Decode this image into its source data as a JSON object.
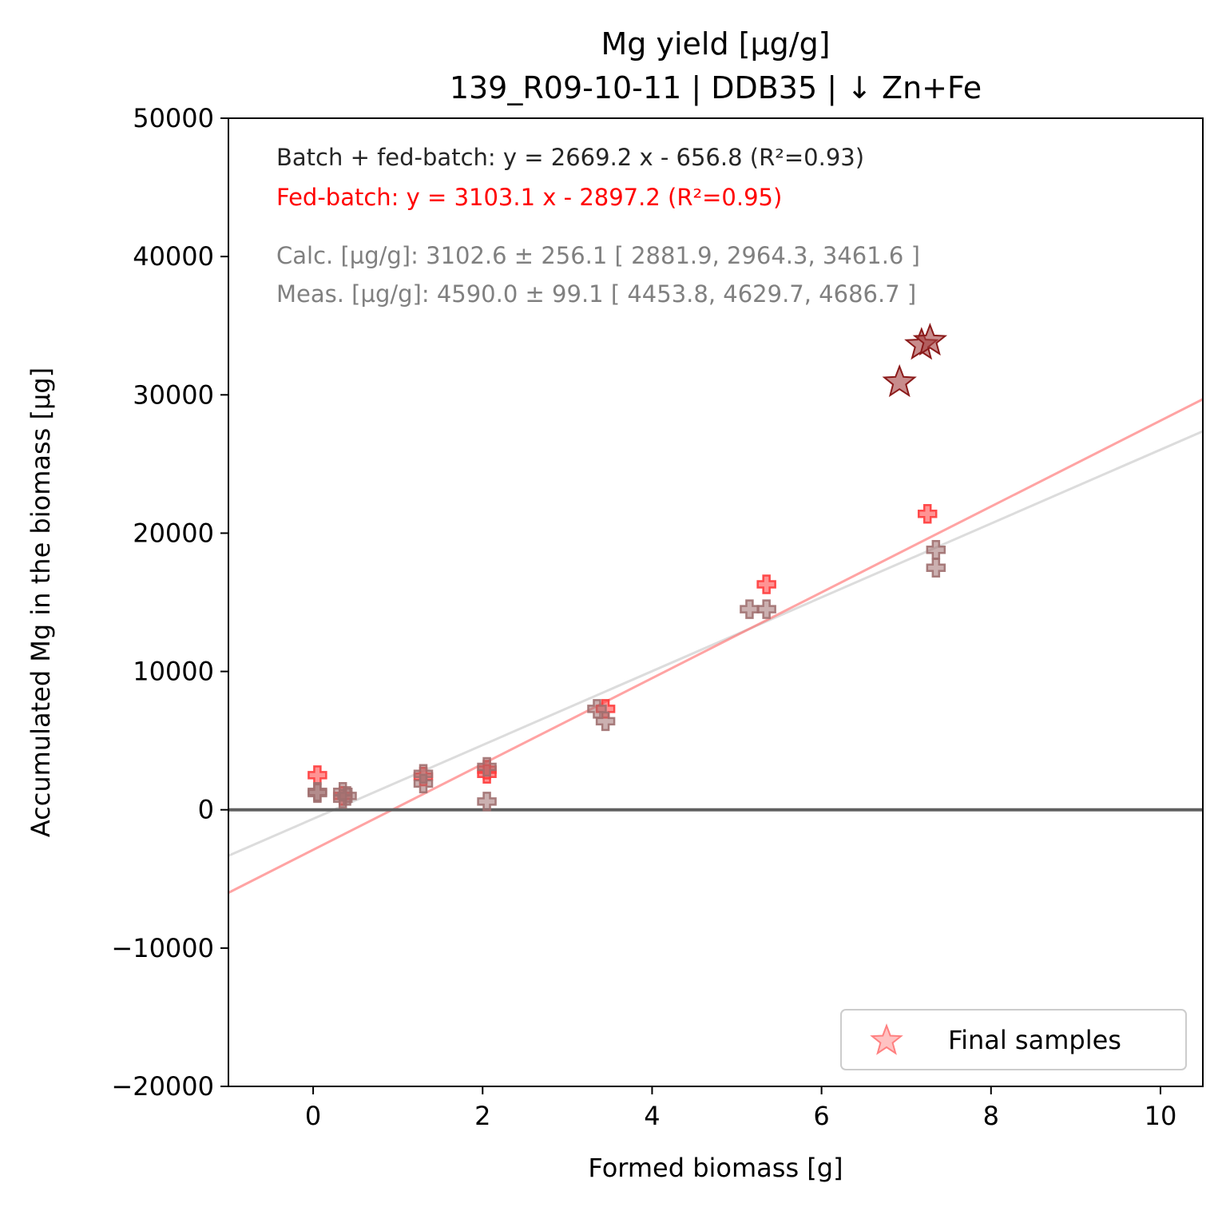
{
  "chart_data": {
    "type": "scatter",
    "title": "Mg yield [µg/g]",
    "subtitle": "139_R09-10-11  |  DDB35  |  ↓ Zn+Fe",
    "xlabel": "Formed biomass [g]",
    "ylabel": "Accumulated Mg in the biomass [µg]",
    "xlim": [
      -1,
      10.5
    ],
    "ylim": [
      -20000,
      50000
    ],
    "x_ticks": [
      0,
      2,
      4,
      6,
      8,
      10
    ],
    "x_tick_labels": [
      "0",
      "2",
      "4",
      "6",
      "8",
      "10"
    ],
    "y_ticks": [
      -20000,
      -10000,
      0,
      10000,
      20000,
      30000,
      40000,
      50000
    ],
    "y_tick_labels": [
      "−20000",
      "−10000",
      "0",
      "10000",
      "20000",
      "30000",
      "40000",
      "50000"
    ],
    "grid": false,
    "legend_position": "lower-right",
    "annotations": [
      {
        "text": "Batch + fed-batch: y = 2669.2 x - 656.8 (R²=0.93)",
        "color": "#262626"
      },
      {
        "text": "Fed-batch: y = 3103.1 x - 2897.2 (R²=0.95)",
        "color": "#ff0000"
      },
      {
        "text": "Calc. [µg/g]: 3102.6 ± 256.1 [ 2881.9, 2964.3, 3461.6 ]",
        "color": "#808080"
      },
      {
        "text": "Meas. [µg/g]: 4590.0 ± 99.1 [ 4453.8, 4629.7, 4686.7 ]",
        "color": "#808080"
      }
    ],
    "lines": [
      {
        "label": "Batch + fed-batch",
        "slope": 2669.2,
        "intercept": -656.8,
        "color": "#bfbfbf",
        "opacity": 0.55
      },
      {
        "label": "Fed-batch",
        "slope": 3103.1,
        "intercept": -2897.2,
        "color": "#ff6666",
        "opacity": 0.6
      }
    ],
    "hline": {
      "y": 0,
      "color": "#606060"
    },
    "series": [
      {
        "marker": "plus",
        "color": "#ff3b3b",
        "points": [
          [
            0.05,
            2500
          ],
          [
            0.35,
            1000
          ],
          [
            1.3,
            2400
          ],
          [
            2.05,
            2900
          ],
          [
            2.05,
            2600
          ],
          [
            3.45,
            7300
          ],
          [
            5.35,
            16300
          ],
          [
            7.25,
            21400
          ]
        ]
      },
      {
        "marker": "plus",
        "color": "#a07070",
        "points": [
          [
            0.05,
            1300
          ],
          [
            0.05,
            1200
          ],
          [
            0.35,
            1300
          ],
          [
            0.35,
            800
          ],
          [
            0.4,
            1000
          ],
          [
            1.3,
            2600
          ],
          [
            1.3,
            1900
          ],
          [
            2.05,
            3100
          ],
          [
            2.05,
            600
          ],
          [
            3.35,
            7300
          ],
          [
            3.45,
            6400
          ],
          [
            5.15,
            14500
          ],
          [
            5.35,
            14500
          ],
          [
            7.35,
            18800
          ],
          [
            7.35,
            17500
          ]
        ]
      },
      {
        "name": "Final samples",
        "marker": "star",
        "color": "#a34040",
        "points": [
          [
            6.92,
            30900
          ],
          [
            7.18,
            33600
          ],
          [
            7.28,
            33900
          ]
        ]
      }
    ]
  }
}
